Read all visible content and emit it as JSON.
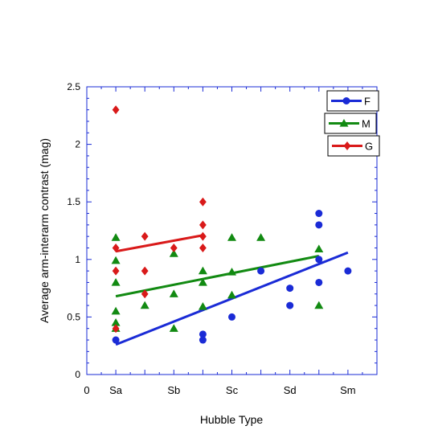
{
  "chart_data": {
    "type": "scatter",
    "title": "",
    "xlabel": "Hubble Type",
    "ylabel": "Average arm-interarm contrast (mag)",
    "xlim": [
      0,
      10
    ],
    "ylim": [
      0,
      2.5
    ],
    "x_ticks": [
      {
        "value": 0,
        "label": "0"
      },
      {
        "value": 1,
        "label": "Sa"
      },
      {
        "value": 3,
        "label": "Sb"
      },
      {
        "value": 5,
        "label": "Sc"
      },
      {
        "value": 7,
        "label": "Sd"
      },
      {
        "value": 9,
        "label": "Sm"
      }
    ],
    "y_ticks": [
      {
        "value": 0,
        "label": "0"
      },
      {
        "value": 0.5,
        "label": "0.5"
      },
      {
        "value": 1,
        "label": "1"
      },
      {
        "value": 1.5,
        "label": "1.5"
      },
      {
        "value": 2,
        "label": "2"
      },
      {
        "value": 2.5,
        "label": "2.5"
      }
    ],
    "grid": false,
    "legend_position": "top-right",
    "series": [
      {
        "name": "F",
        "color": "#1a2bd6",
        "marker": "circle",
        "points": [
          [
            1,
            0.3
          ],
          [
            4,
            0.35
          ],
          [
            4,
            0.3
          ],
          [
            5,
            0.5
          ],
          [
            6,
            0.9
          ],
          [
            7,
            0.75
          ],
          [
            7,
            0.6
          ],
          [
            8,
            1.4
          ],
          [
            8,
            1.3
          ],
          [
            8,
            1.0
          ],
          [
            8,
            0.8
          ],
          [
            9,
            0.9
          ]
        ],
        "fit": [
          [
            1,
            0.26
          ],
          [
            9,
            1.06
          ]
        ]
      },
      {
        "name": "M",
        "color": "#128a12",
        "marker": "triangle",
        "points": [
          [
            1,
            1.19
          ],
          [
            1,
            0.99
          ],
          [
            1,
            0.8
          ],
          [
            1,
            0.55
          ],
          [
            1,
            0.45
          ],
          [
            1,
            0.4
          ],
          [
            2,
            0.6
          ],
          [
            3,
            1.05
          ],
          [
            3,
            0.7
          ],
          [
            3,
            0.4
          ],
          [
            4,
            0.9
          ],
          [
            4,
            0.8
          ],
          [
            4,
            0.59
          ],
          [
            5,
            1.19
          ],
          [
            5,
            0.89
          ],
          [
            5,
            0.69
          ],
          [
            6,
            1.19
          ],
          [
            8,
            1.09
          ],
          [
            8,
            0.6
          ]
        ],
        "fit": [
          [
            1,
            0.68
          ],
          [
            8,
            1.03
          ]
        ]
      },
      {
        "name": "G",
        "color": "#d91a1a",
        "marker": "diamond",
        "points": [
          [
            1,
            2.3
          ],
          [
            1,
            1.1
          ],
          [
            1,
            0.9
          ],
          [
            1,
            0.4
          ],
          [
            2,
            1.2
          ],
          [
            2,
            0.9
          ],
          [
            2,
            0.7
          ],
          [
            3,
            1.1
          ],
          [
            4,
            1.5
          ],
          [
            4,
            1.3
          ],
          [
            4,
            1.2
          ],
          [
            4,
            1.1
          ]
        ],
        "fit": [
          [
            1,
            1.07
          ],
          [
            4,
            1.21
          ]
        ]
      }
    ]
  }
}
